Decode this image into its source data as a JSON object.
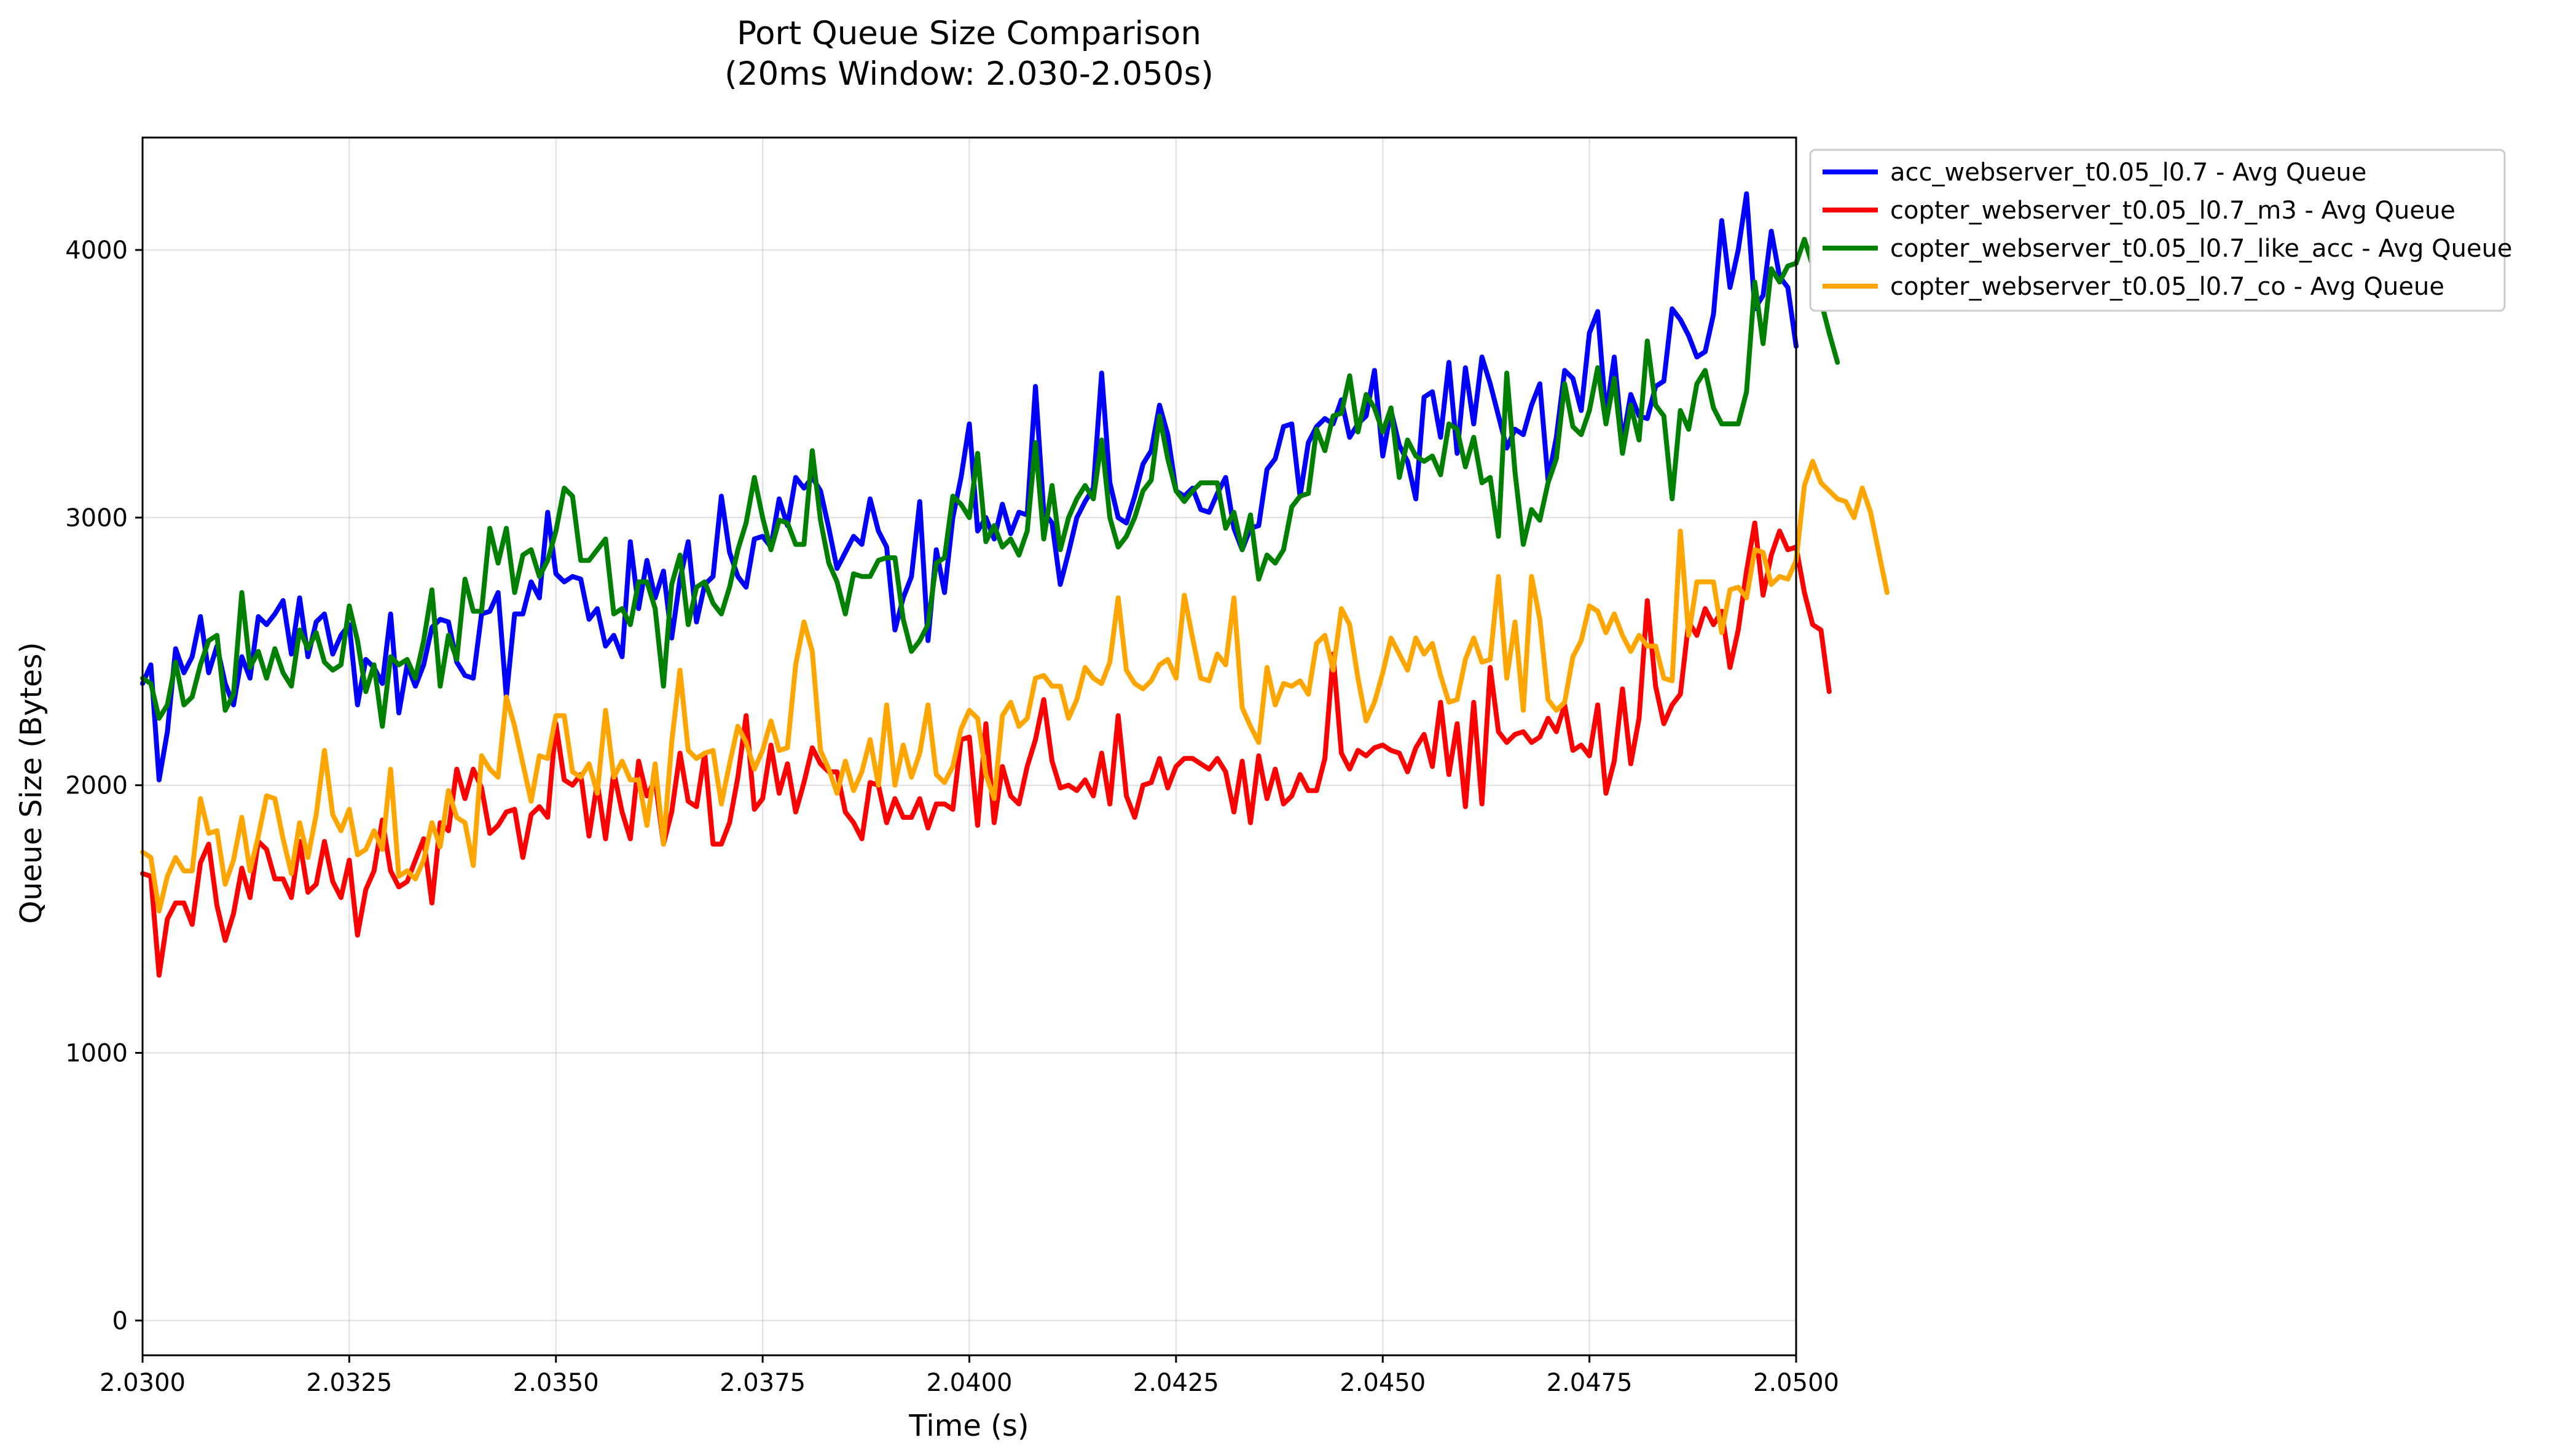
{
  "chart_data": {
    "type": "line",
    "title": "Port Queue Size Comparison",
    "subtitle": "(20ms Window: 2.030-2.050s)",
    "xlabel": "Time (s)",
    "ylabel": "Queue Size (Bytes)",
    "xlim": [
      2.03,
      2.05
    ],
    "ylim": [
      -130,
      4420
    ],
    "xticks": [
      "2.0300",
      "2.0325",
      "2.0350",
      "2.0375",
      "2.0400",
      "2.0425",
      "2.0450",
      "2.0475",
      "2.0500"
    ],
    "yticks": [
      "0",
      "1000",
      "2000",
      "3000",
      "4000"
    ],
    "grid": true,
    "legend_position": "outside-right-top",
    "x_step": 0.0001,
    "x_start": 2.03,
    "series": [
      {
        "name": "acc_webserver_t0.05_l0.7 - Avg Queue",
        "color": "#0000ff",
        "values": [
          2380,
          2450,
          2020,
          2200,
          2510,
          2420,
          2480,
          2630,
          2420,
          2520,
          2380,
          2300,
          2480,
          2400,
          2630,
          2600,
          2640,
          2690,
          2490,
          2700,
          2480,
          2610,
          2640,
          2490,
          2560,
          2600,
          2300,
          2470,
          2440,
          2380,
          2640,
          2270,
          2450,
          2370,
          2450,
          2590,
          2620,
          2610,
          2460,
          2410,
          2400,
          2640,
          2650,
          2720,
          2330,
          2640,
          2640,
          2760,
          2700,
          3020,
          2790,
          2760,
          2780,
          2770,
          2620,
          2660,
          2520,
          2560,
          2480,
          2910,
          2660,
          2840,
          2700,
          2800,
          2550,
          2770,
          2910,
          2610,
          2750,
          2780,
          3080,
          2870,
          2780,
          2740,
          2920,
          2930,
          2890,
          3070,
          2970,
          3150,
          3110,
          3150,
          3100,
          2960,
          2810,
          2870,
          2930,
          2900,
          3070,
          2950,
          2890,
          2580,
          2700,
          2780,
          3060,
          2540,
          2880,
          2720,
          3000,
          3150,
          3350,
          2950,
          3000,
          2920,
          3050,
          2940,
          3020,
          3010,
          3490,
          3020,
          2980,
          2750,
          2870,
          3000,
          3060,
          3110,
          3540,
          3130,
          3000,
          2980,
          3080,
          3200,
          3250,
          3420,
          3310,
          3100,
          3080,
          3110,
          3030,
          3020,
          3090,
          3150,
          2960,
          2880,
          2960,
          2970,
          3180,
          3220,
          3340,
          3350,
          3080,
          3280,
          3340,
          3370,
          3350,
          3440,
          3300,
          3350,
          3380,
          3550,
          3230,
          3400,
          3270,
          3210,
          3070,
          3450,
          3470,
          3300,
          3580,
          3240,
          3560,
          3350,
          3600,
          3500,
          3380,
          3260,
          3330,
          3310,
          3420,
          3500,
          3140,
          3300,
          3550,
          3520,
          3400,
          3690,
          3770,
          3380,
          3600,
          3280,
          3460,
          3380,
          3370,
          3490,
          3510,
          3780,
          3740,
          3680,
          3600,
          3620,
          3760,
          4110,
          3860,
          4000,
          4210,
          3780,
          3830,
          4070,
          3900,
          3860,
          3640
        ]
      },
      {
        "name": "copter_webserver_t0.05_l0.7_m3 - Avg Queue",
        "color": "#ff0000",
        "values": [
          1670,
          1660,
          1290,
          1500,
          1560,
          1560,
          1480,
          1710,
          1780,
          1550,
          1420,
          1520,
          1690,
          1580,
          1790,
          1760,
          1650,
          1650,
          1580,
          1790,
          1600,
          1630,
          1790,
          1640,
          1580,
          1720,
          1440,
          1610,
          1680,
          1870,
          1680,
          1620,
          1640,
          1720,
          1800,
          1560,
          1860,
          1830,
          2060,
          1950,
          2060,
          1990,
          1820,
          1850,
          1900,
          1910,
          1730,
          1890,
          1920,
          1880,
          2230,
          2020,
          2000,
          2040,
          1810,
          2010,
          1800,
          2050,
          1900,
          1800,
          2090,
          1960,
          2020,
          1780,
          1900,
          2120,
          1940,
          1920,
          2120,
          1780,
          1780,
          1860,
          2030,
          2260,
          1910,
          1950,
          2150,
          1970,
          2080,
          1900,
          2010,
          2140,
          2080,
          2050,
          2050,
          1900,
          1860,
          1800,
          2010,
          2000,
          1860,
          1950,
          1880,
          1880,
          1950,
          1840,
          1930,
          1930,
          1910,
          2170,
          2180,
          1850,
          2230,
          1860,
          2070,
          1960,
          1930,
          2070,
          2170,
          2320,
          2090,
          1990,
          2000,
          1980,
          2020,
          1960,
          2120,
          1930,
          2260,
          1960,
          1880,
          2000,
          2010,
          2100,
          1990,
          2070,
          2100,
          2100,
          2080,
          2060,
          2100,
          2050,
          1900,
          2090,
          1860,
          2110,
          1950,
          2060,
          1930,
          1960,
          2040,
          1980,
          1980,
          2100,
          2490,
          2120,
          2060,
          2130,
          2110,
          2140,
          2150,
          2130,
          2120,
          2050,
          2140,
          2190,
          2070,
          2310,
          2040,
          2230,
          1920,
          2310,
          1930,
          2440,
          2200,
          2160,
          2190,
          2200,
          2160,
          2180,
          2250,
          2200,
          2300,
          2130,
          2150,
          2110,
          2300,
          1970,
          2090,
          2360,
          2080,
          2250,
          2690,
          2370,
          2230,
          2300,
          2340,
          2610,
          2560,
          2660,
          2600,
          2650,
          2440,
          2580,
          2800,
          2980,
          2710,
          2860,
          2950,
          2880,
          2890,
          2720,
          2600,
          2580,
          2350
        ]
      },
      {
        "name": "copter_webserver_t0.05_l0.7_like_acc - Avg Queue",
        "color": "#008000",
        "values": [
          2400,
          2380,
          2250,
          2300,
          2460,
          2300,
          2330,
          2450,
          2540,
          2560,
          2280,
          2340,
          2720,
          2440,
          2500,
          2400,
          2510,
          2420,
          2370,
          2580,
          2510,
          2570,
          2460,
          2430,
          2450,
          2670,
          2540,
          2350,
          2450,
          2220,
          2480,
          2450,
          2470,
          2400,
          2540,
          2730,
          2370,
          2560,
          2470,
          2770,
          2650,
          2650,
          2960,
          2830,
          2960,
          2720,
          2860,
          2880,
          2780,
          2840,
          2950,
          3110,
          3080,
          2840,
          2840,
          2880,
          2920,
          2640,
          2660,
          2600,
          2760,
          2760,
          2660,
          2370,
          2750,
          2860,
          2600,
          2740,
          2760,
          2680,
          2640,
          2740,
          2880,
          2980,
          3150,
          3000,
          2880,
          2990,
          2980,
          2900,
          2900,
          3250,
          2990,
          2830,
          2760,
          2640,
          2790,
          2780,
          2780,
          2840,
          2850,
          2850,
          2620,
          2500,
          2540,
          2600,
          2830,
          2850,
          3080,
          3050,
          3000,
          3240,
          2910,
          2970,
          2890,
          2920,
          2860,
          2950,
          3280,
          2920,
          3120,
          2880,
          3000,
          3070,
          3120,
          3070,
          3290,
          3000,
          2890,
          2930,
          3000,
          3100,
          3140,
          3380,
          3220,
          3100,
          3060,
          3100,
          3130,
          3130,
          3130,
          2960,
          3020,
          2880,
          3010,
          2770,
          2860,
          2830,
          2880,
          3040,
          3080,
          3090,
          3330,
          3250,
          3380,
          3390,
          3530,
          3320,
          3460,
          3410,
          3320,
          3410,
          3150,
          3290,
          3230,
          3210,
          3230,
          3160,
          3350,
          3330,
          3190,
          3300,
          3130,
          3150,
          2930,
          3540,
          3170,
          2900,
          3030,
          2990,
          3130,
          3220,
          3500,
          3340,
          3310,
          3400,
          3560,
          3350,
          3520,
          3240,
          3420,
          3290,
          3660,
          3420,
          3380,
          3070,
          3400,
          3330,
          3500,
          3550,
          3410,
          3350,
          3350,
          3350,
          3470,
          3880,
          3650,
          3930,
          3880,
          3940,
          3950,
          4040,
          3940,
          3810,
          3690,
          3580
        ]
      },
      {
        "name": "copter_webserver_t0.05_l0.7_co - Avg Queue",
        "color": "#ffa500",
        "values": [
          1750,
          1730,
          1530,
          1660,
          1730,
          1680,
          1680,
          1950,
          1820,
          1830,
          1630,
          1720,
          1880,
          1680,
          1810,
          1960,
          1950,
          1800,
          1670,
          1860,
          1730,
          1890,
          2130,
          1890,
          1830,
          1910,
          1740,
          1760,
          1830,
          1760,
          2060,
          1660,
          1680,
          1650,
          1720,
          1860,
          1770,
          1980,
          1880,
          1860,
          1700,
          2110,
          2060,
          2030,
          2330,
          2220,
          2080,
          1940,
          2110,
          2100,
          2260,
          2260,
          2050,
          2030,
          2080,
          1970,
          2280,
          2030,
          2090,
          2020,
          2020,
          1850,
          2080,
          1780,
          2160,
          2430,
          2130,
          2100,
          2120,
          2130,
          1930,
          2080,
          2220,
          2160,
          2060,
          2130,
          2240,
          2130,
          2140,
          2450,
          2610,
          2500,
          2130,
          2060,
          1970,
          2090,
          1980,
          2050,
          2170,
          2000,
          2300,
          2000,
          2150,
          2030,
          2120,
          2300,
          2040,
          2010,
          2070,
          2210,
          2280,
          2250,
          2040,
          1950,
          2260,
          2310,
          2220,
          2250,
          2400,
          2410,
          2370,
          2370,
          2250,
          2320,
          2440,
          2400,
          2380,
          2460,
          2700,
          2430,
          2380,
          2360,
          2390,
          2450,
          2470,
          2400,
          2710,
          2550,
          2400,
          2390,
          2490,
          2450,
          2700,
          2290,
          2220,
          2160,
          2440,
          2300,
          2380,
          2370,
          2390,
          2340,
          2530,
          2560,
          2430,
          2660,
          2600,
          2400,
          2240,
          2310,
          2420,
          2550,
          2490,
          2430,
          2550,
          2490,
          2530,
          2410,
          2310,
          2320,
          2470,
          2550,
          2460,
          2470,
          2780,
          2400,
          2610,
          2280,
          2780,
          2620,
          2320,
          2280,
          2310,
          2480,
          2540,
          2670,
          2650,
          2570,
          2640,
          2560,
          2500,
          2560,
          2520,
          2520,
          2400,
          2390,
          2950,
          2560,
          2760,
          2760,
          2760,
          2570,
          2730,
          2740,
          2700,
          2880,
          2870,
          2750,
          2780,
          2770,
          2840,
          3120,
          3210,
          3130,
          3100,
          3070,
          3060,
          3000,
          3110,
          3020,
          2870,
          2720
        ]
      }
    ]
  }
}
